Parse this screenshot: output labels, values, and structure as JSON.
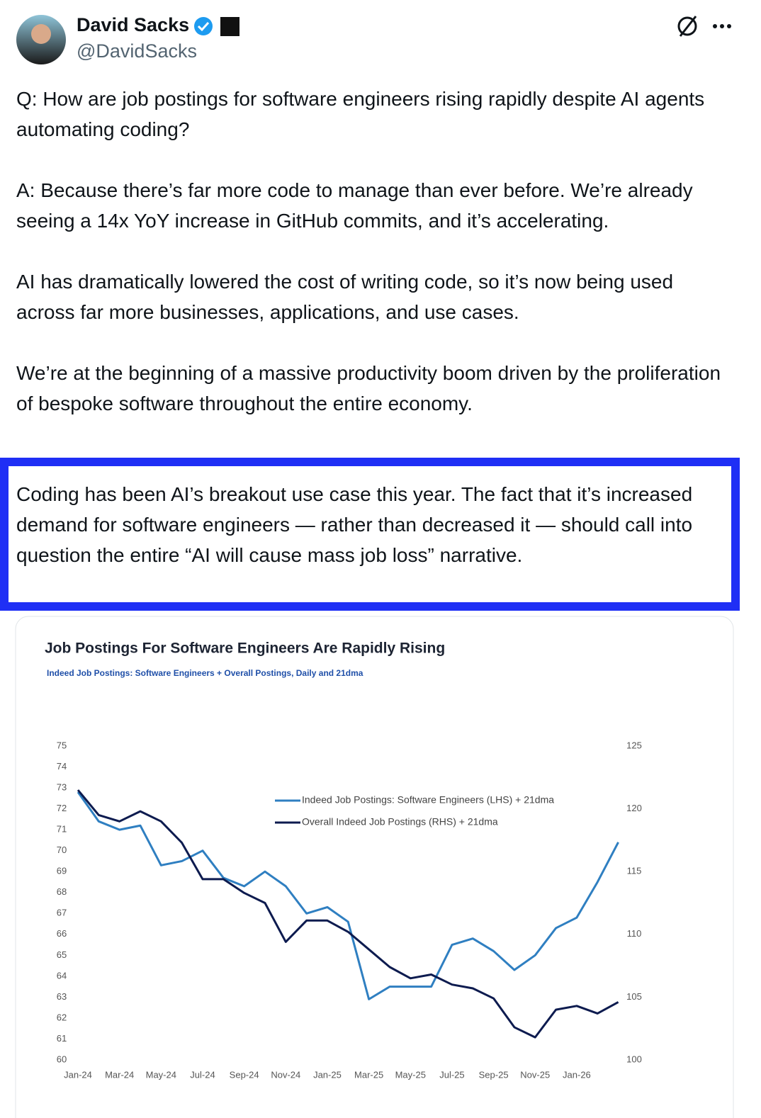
{
  "tweet": {
    "name": "David Sacks",
    "handle": "@DavidSacks",
    "paragraphs": [
      "Q: How are job postings for software engineers rising rapidly despite AI agents automating coding?",
      "A: Because there’s far more code to manage than ever before. We’re already seeing a 14x YoY increase in GitHub commits, and it’s accelerating.",
      "AI has dramatically lowered the cost of writing code, so it’s now being used across far more businesses, applications, and use cases.",
      "We’re at the beginning of a massive productivity boom driven by the proliferation of bespoke software throughout the entire economy.",
      "Coding has been AI’s breakout use case this year. The fact that it’s increased demand for software engineers — rather than decreased it — should call into question the entire “AI will cause mass job loss” narrative."
    ]
  },
  "chart_data": {
    "type": "line",
    "title": "Job Postings For Software Engineers Are Rapidly Rising",
    "subtitle": "Indeed Job Postings: Software Engineers + Overall Postings, Daily and 21dma",
    "categories": [
      "Jan-24",
      null,
      "Mar-24",
      null,
      "May-24",
      null,
      "Jul-24",
      null,
      "Sep-24",
      null,
      "Nov-24",
      null,
      "Jan-25",
      null,
      "Mar-25",
      null,
      "May-25",
      null,
      "Jul-25",
      null,
      "Sep-25",
      null,
      "Nov-25",
      null,
      "Jan-26",
      null,
      null
    ],
    "series": [
      {
        "name": "Indeed Job Postings: Software Engineers (LHS) + 21dma",
        "color": "#2f7fc1",
        "axis": "y",
        "values": [
          72.8,
          71.4,
          71.0,
          71.2,
          69.3,
          69.5,
          70.0,
          68.7,
          68.3,
          69.0,
          68.3,
          67.0,
          67.3,
          66.6,
          62.9,
          63.5,
          63.5,
          63.5,
          65.5,
          65.8,
          65.2,
          64.3,
          65.0,
          66.3,
          66.8,
          68.5,
          70.4
        ]
      },
      {
        "name": "Overall Indeed Job Postings (RHS) + 21dma",
        "color": "#0d1b4f",
        "axis": "y2",
        "values": [
          121.5,
          119.5,
          119.0,
          119.8,
          119.0,
          117.3,
          114.4,
          114.4,
          113.3,
          112.5,
          109.4,
          111.1,
          111.1,
          110.2,
          108.8,
          107.4,
          106.5,
          106.8,
          106.0,
          105.7,
          104.9,
          102.6,
          101.8,
          104.0,
          104.3,
          103.7,
          104.6
        ]
      }
    ],
    "ylim": [
      60,
      75
    ],
    "yticks": [
      60,
      61,
      62,
      63,
      64,
      65,
      66,
      67,
      68,
      69,
      70,
      71,
      72,
      73,
      74,
      75
    ],
    "y2lim": [
      100,
      125
    ],
    "y2ticks": [
      100,
      105,
      110,
      115,
      120,
      125
    ],
    "grid": false
  }
}
